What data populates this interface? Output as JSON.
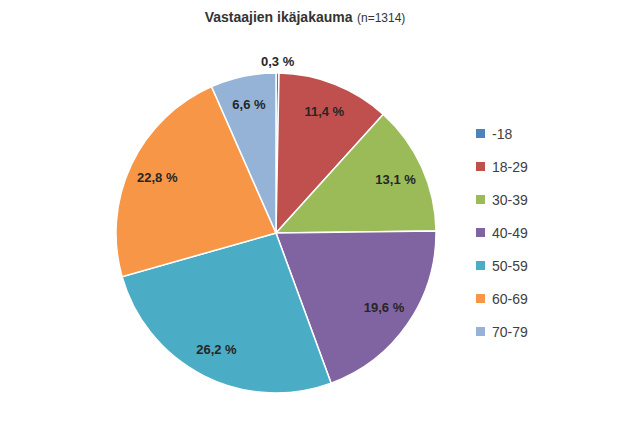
{
  "chart_data": {
    "type": "pie",
    "title": "Vastaajien ikäjakauma",
    "subtitle": "(n=1314)",
    "categories": [
      "-18",
      "18-29",
      "30-39",
      "40-49",
      "50-59",
      "60-69",
      "70-79"
    ],
    "values": [
      0.3,
      11.4,
      13.1,
      19.6,
      26.2,
      22.8,
      6.6
    ],
    "value_labels": [
      "0,3 %",
      "11,4 %",
      "13,1 %",
      "19,6 %",
      "26,2 %",
      "22,8 %",
      "6,6 %"
    ],
    "colors": [
      "#4f81bd",
      "#c0504d",
      "#9bbb59",
      "#8064a2",
      "#4bacc6",
      "#f79646",
      "#95b3d7"
    ],
    "data_labels": true,
    "legend": "right"
  }
}
